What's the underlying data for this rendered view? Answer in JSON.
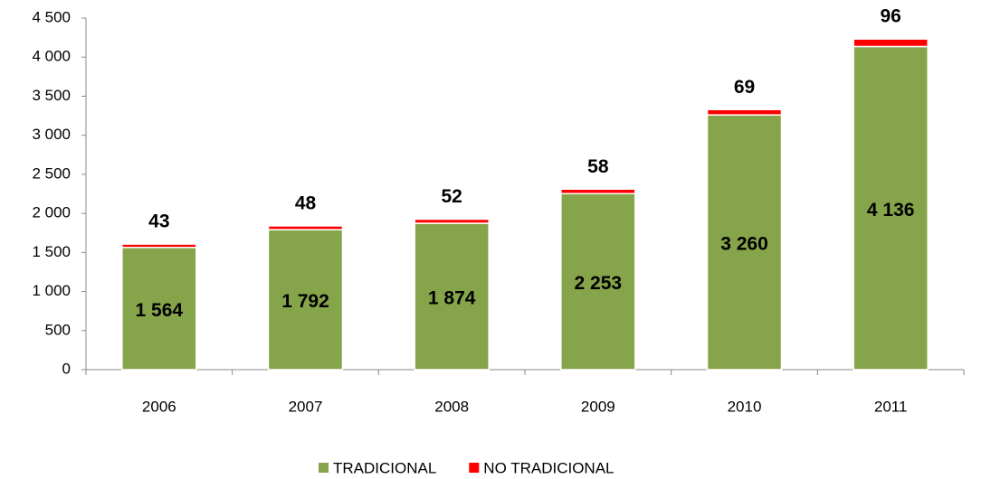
{
  "chart_data": {
    "type": "stacked_bar",
    "categories": [
      "2006",
      "2007",
      "2008",
      "2009",
      "2010",
      "2011"
    ],
    "series": [
      {
        "name": "TRADICIONAL",
        "color": "#86a44a",
        "values": [
          1564,
          1792,
          1874,
          2253,
          3260,
          4136
        ],
        "value_labels": [
          "1 564",
          "1 792",
          "1 874",
          "2 253",
          "3 260",
          "4 136"
        ]
      },
      {
        "name": "NO TRADICIONAL",
        "color": "#ff0000",
        "values": [
          43,
          48,
          52,
          58,
          69,
          96
        ]
      }
    ],
    "ylim": [
      0,
      4500
    ],
    "yticks": [
      0,
      500,
      {
        "value": 1000,
        "label": "1 000"
      },
      {
        "value": 1500,
        "label": "1 500"
      },
      {
        "value": 2000,
        "label": "2 000"
      },
      {
        "value": 2500,
        "label": "2 500"
      },
      {
        "value": 3000,
        "label": "3 000"
      },
      {
        "value": 3500,
        "label": "3 500"
      },
      {
        "value": 4000,
        "label": "4 000"
      },
      {
        "value": 4500,
        "label": "4 500"
      }
    ],
    "legend": "bottom"
  }
}
